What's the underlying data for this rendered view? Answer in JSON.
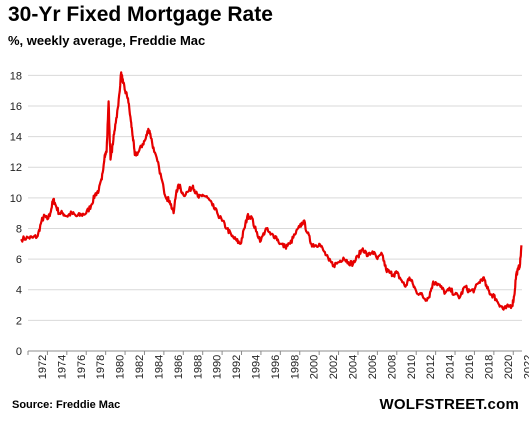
{
  "header": {
    "title": "30-Yr Fixed Mortgage Rate",
    "subtitle": "%, weekly average, Freddie Mac"
  },
  "footer": {
    "source": "Source: Freddie Mac",
    "brand": "WOLFSTREET.com"
  },
  "colors": {
    "line": "#e60000",
    "grid": "#d9d9d9",
    "axis": "#8c8c8c"
  },
  "chart_data": {
    "type": "line",
    "title": "30-Yr Fixed Mortgage Rate",
    "subtitle": "%, weekly average, Freddie Mac",
    "xlabel": "",
    "ylabel": "",
    "xlim": [
      1972,
      2022.9
    ],
    "ylim": [
      0,
      19
    ],
    "yticks": [
      0,
      2,
      4,
      6,
      8,
      10,
      12,
      14,
      16,
      18
    ],
    "xticks": [
      "1972",
      "1974",
      "1976",
      "1978",
      "1980",
      "1982",
      "1984",
      "1986",
      "1988",
      "1990",
      "1992",
      "1994",
      "1996",
      "1998",
      "2000",
      "2002",
      "2004",
      "2006",
      "2008",
      "2010",
      "2012",
      "2014",
      "2016",
      "2018",
      "2020",
      "2022"
    ],
    "grid": "horizontal",
    "legend": "none",
    "series": [
      {
        "x": [
          1971.3,
          1972.0,
          1972.5,
          1973.0,
          1973.4,
          1973.7,
          1974.0,
          1974.3,
          1974.6,
          1974.8,
          1975.2,
          1975.6,
          1976.0,
          1976.5,
          1977.0,
          1977.5,
          1978.0,
          1978.5,
          1978.9,
          1979.3,
          1979.6,
          1979.9,
          1980.1,
          1980.3,
          1980.5,
          1980.8,
          1981.0,
          1981.3,
          1981.6,
          1981.8,
          1982.0,
          1982.3,
          1982.6,
          1982.8,
          1983.0,
          1983.4,
          1983.8,
          1984.1,
          1984.4,
          1984.6,
          1985.0,
          1985.5,
          1986.0,
          1986.3,
          1986.6,
          1987.0,
          1987.3,
          1987.6,
          1988.0,
          1988.5,
          1989.0,
          1989.3,
          1989.6,
          1990.0,
          1990.5,
          1991.0,
          1991.5,
          1992.0,
          1992.5,
          1993.0,
          1993.5,
          1993.9,
          1994.3,
          1994.6,
          1995.0,
          1995.5,
          1996.0,
          1996.5,
          1997.0,
          1997.5,
          1998.0,
          1998.5,
          1999.0,
          1999.5,
          2000.0,
          2000.4,
          2000.8,
          2001.2,
          2001.6,
          2002.0,
          2002.5,
          2003.0,
          2003.5,
          2004.0,
          2004.5,
          2005.0,
          2005.5,
          2006.0,
          2006.5,
          2007.0,
          2007.5,
          2008.0,
          2008.5,
          2008.9,
          2009.3,
          2009.7,
          2010.0,
          2010.5,
          2010.9,
          2011.3,
          2011.7,
          2012.0,
          2012.5,
          2012.9,
          2013.3,
          2013.7,
          2014.0,
          2014.5,
          2015.0,
          2015.5,
          2016.0,
          2016.5,
          2017.0,
          2017.5,
          2018.0,
          2018.5,
          2018.9,
          2019.3,
          2019.7,
          2020.0,
          2020.4,
          2020.8,
          2021.0,
          2021.5,
          2021.9,
          2022.1,
          2022.3,
          2022.5,
          2022.7,
          2022.85
        ],
        "y": [
          7.3,
          7.4,
          7.4,
          7.5,
          8.5,
          8.8,
          8.6,
          9.0,
          9.9,
          9.6,
          9.0,
          9.0,
          8.8,
          9.0,
          8.8,
          8.9,
          9.0,
          9.5,
          10.2,
          10.5,
          11.2,
          12.8,
          13.0,
          16.3,
          12.5,
          13.8,
          14.8,
          16.0,
          18.2,
          17.5,
          17.0,
          16.5,
          15.0,
          14.0,
          12.8,
          13.0,
          13.5,
          13.8,
          14.5,
          14.2,
          13.0,
          12.0,
          10.5,
          10.0,
          9.8,
          9.0,
          10.5,
          10.8,
          10.2,
          10.4,
          10.8,
          10.3,
          10.0,
          10.2,
          10.0,
          9.5,
          9.0,
          8.5,
          8.0,
          7.5,
          7.2,
          7.0,
          8.0,
          8.8,
          8.8,
          7.8,
          7.2,
          8.0,
          7.6,
          7.5,
          7.0,
          6.8,
          7.0,
          7.6,
          8.1,
          8.5,
          7.7,
          7.0,
          6.9,
          7.0,
          6.5,
          5.9,
          5.6,
          5.8,
          6.1,
          5.8,
          5.7,
          6.2,
          6.7,
          6.2,
          6.5,
          6.0,
          6.3,
          5.3,
          5.1,
          5.0,
          5.1,
          4.6,
          4.2,
          4.8,
          4.3,
          3.9,
          3.7,
          3.4,
          3.5,
          4.4,
          4.5,
          4.2,
          3.8,
          4.0,
          3.7,
          3.5,
          4.2,
          3.9,
          4.0,
          4.5,
          4.8,
          4.1,
          3.7,
          3.6,
          3.2,
          2.9,
          2.7,
          2.9,
          3.0,
          3.6,
          5.0,
          5.3,
          5.7,
          6.9
        ]
      }
    ]
  }
}
